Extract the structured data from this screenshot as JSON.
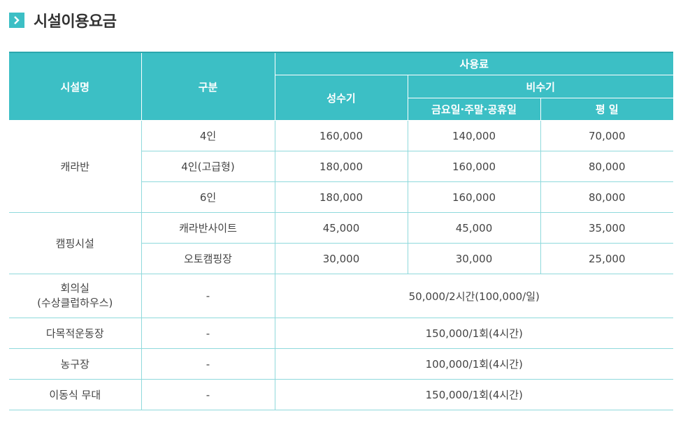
{
  "page": {
    "title": "시설이용요금"
  },
  "table": {
    "headers": {
      "facility": "시설명",
      "category": "구분",
      "fee": "사용료",
      "peak": "성수기",
      "offpeak": "비수기",
      "weekend": "금요일·주말·공휴일",
      "weekday": "평 일"
    },
    "caravan": {
      "name": "캐라반",
      "rows": [
        {
          "category": "4인",
          "peak": "160,000",
          "weekend": "140,000",
          "weekday": "70,000"
        },
        {
          "category": "4인(고급형)",
          "peak": "180,000",
          "weekend": "160,000",
          "weekday": "80,000"
        },
        {
          "category": "6인",
          "peak": "180,000",
          "weekend": "160,000",
          "weekday": "80,000"
        }
      ]
    },
    "camping": {
      "name": "캠핑시설",
      "rows": [
        {
          "category": "캐라반사이트",
          "peak": "45,000",
          "weekend": "45,000",
          "weekday": "35,000"
        },
        {
          "category": "오토캠핑장",
          "peak": "30,000",
          "weekend": "30,000",
          "weekday": "25,000"
        }
      ]
    },
    "others": [
      {
        "name_line1": "회의실",
        "name_line2": "(수상클럽하우스)",
        "category": "-",
        "fee": "50,000/2시간(100,000/일)"
      },
      {
        "name": "다목적운동장",
        "category": "-",
        "fee": "150,000/1회(4시간)"
      },
      {
        "name": "농구장",
        "category": "-",
        "fee": "100,000/1회(4시간)"
      },
      {
        "name": "이동식 무대",
        "category": "-",
        "fee": "150,000/1회(4시간)"
      }
    ]
  }
}
